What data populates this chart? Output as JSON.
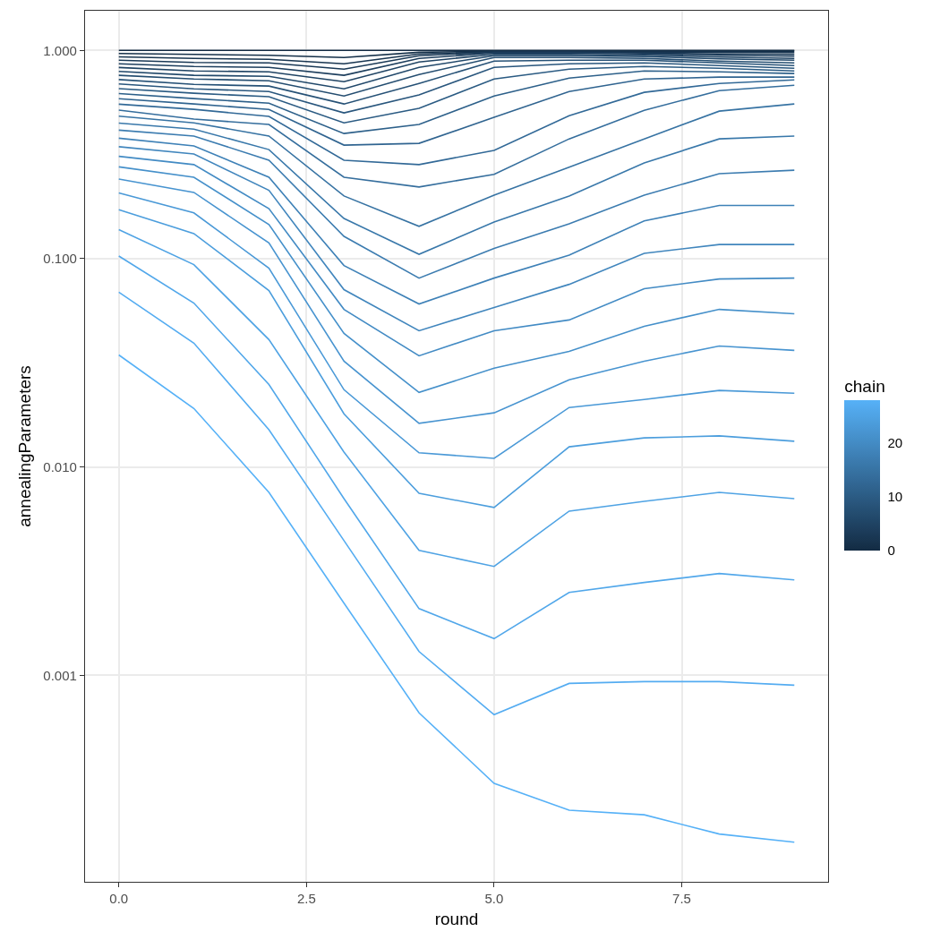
{
  "chart_data": {
    "type": "line",
    "xlabel": "round",
    "ylabel": "annealingParameters",
    "clabel": "chain",
    "clim": [
      0,
      28
    ],
    "cticks": [
      0,
      10,
      20
    ],
    "x": [
      0,
      1,
      2,
      3,
      4,
      5,
      6,
      7,
      8,
      9
    ],
    "xlim": [
      -0.45,
      9.45
    ],
    "xticks": [
      {
        "value": 0,
        "label": "0.0"
      },
      {
        "value": 2.5,
        "label": "2.5"
      },
      {
        "value": 5,
        "label": "5.0"
      },
      {
        "value": 7.5,
        "label": "7.5"
      }
    ],
    "log": "y",
    "ylim": [
      0.000102,
      1.55
    ],
    "yticks": [
      {
        "value": 0.001,
        "label": "0.001"
      },
      {
        "value": 0.01,
        "label": "0.010"
      },
      {
        "value": 0.1,
        "label": "0.100"
      },
      {
        "value": 1,
        "label": "1.000"
      }
    ],
    "grid": true,
    "line_style": "solid",
    "marker": "none",
    "series": [
      {
        "color": "#132b43",
        "values": [
          1.0,
          1.0,
          1.0,
          1.0,
          1.0,
          1.0,
          1.0,
          1.0,
          1.0,
          1.0
        ]
      },
      {
        "color": "#153049",
        "values": [
          0.966,
          0.957,
          0.947,
          0.924,
          0.98,
          0.99,
          0.99,
          0.99,
          0.99,
          0.99
        ]
      },
      {
        "color": "#183550",
        "values": [
          0.931,
          0.915,
          0.906,
          0.862,
          0.961,
          0.985,
          0.985,
          0.98,
          0.98,
          0.976
        ]
      },
      {
        "color": "#1a3956",
        "values": [
          0.897,
          0.875,
          0.871,
          0.813,
          0.943,
          0.98,
          0.98,
          0.971,
          0.961,
          0.957
        ]
      },
      {
        "color": "#1d3e5d",
        "values": [
          0.862,
          0.837,
          0.829,
          0.759,
          0.915,
          0.971,
          0.971,
          0.961,
          0.947,
          0.938
        ]
      },
      {
        "color": "#1f4363",
        "values": [
          0.828,
          0.797,
          0.789,
          0.708,
          0.88,
          0.957,
          0.957,
          0.947,
          0.929,
          0.915
        ]
      },
      {
        "color": "#21486a",
        "values": [
          0.793,
          0.759,
          0.751,
          0.654,
          0.829,
          0.943,
          0.943,
          0.933,
          0.911,
          0.897
        ]
      },
      {
        "color": "#244d70",
        "values": [
          0.759,
          0.729,
          0.715,
          0.604,
          0.766,
          0.924,
          0.924,
          0.915,
          0.888,
          0.871
        ]
      },
      {
        "color": "#265176",
        "values": [
          0.724,
          0.687,
          0.674,
          0.553,
          0.694,
          0.888,
          0.897,
          0.897,
          0.871,
          0.846
        ]
      },
      {
        "color": "#29567d",
        "values": [
          0.69,
          0.654,
          0.635,
          0.501,
          0.611,
          0.829,
          0.862,
          0.871,
          0.846,
          0.821
        ]
      },
      {
        "color": "#2b5b83",
        "values": [
          0.655,
          0.623,
          0.599,
          0.449,
          0.527,
          0.729,
          0.813,
          0.837,
          0.821,
          0.797
        ]
      },
      {
        "color": "#2d608a",
        "values": [
          0.621,
          0.587,
          0.558,
          0.399,
          0.441,
          0.604,
          0.736,
          0.797,
          0.789,
          0.774
        ]
      },
      {
        "color": "#306490",
        "values": [
          0.586,
          0.553,
          0.521,
          0.351,
          0.358,
          0.477,
          0.635,
          0.729,
          0.744,
          0.744
        ]
      },
      {
        "color": "#326997",
        "values": [
          0.552,
          0.521,
          0.482,
          0.297,
          0.283,
          0.331,
          0.486,
          0.629,
          0.694,
          0.722
        ]
      },
      {
        "color": "#356e9d",
        "values": [
          0.517,
          0.468,
          0.441,
          0.246,
          0.221,
          0.254,
          0.376,
          0.516,
          0.641,
          0.68
        ]
      },
      {
        "color": "#3773a3",
        "values": [
          0.483,
          0.449,
          0.388,
          0.2,
          0.143,
          0.202,
          0.275,
          0.376,
          0.511,
          0.553
        ]
      },
      {
        "color": "#3978aa",
        "values": [
          0.448,
          0.419,
          0.334,
          0.156,
          0.105,
          0.15,
          0.2,
          0.288,
          0.376,
          0.388
        ]
      },
      {
        "color": "#3c7cb0",
        "values": [
          0.414,
          0.388,
          0.297,
          0.128,
          0.0807,
          0.112,
          0.147,
          0.202,
          0.256,
          0.266
        ]
      },
      {
        "color": "#3e81b7",
        "values": [
          0.379,
          0.348,
          0.246,
          0.0927,
          0.0606,
          0.0807,
          0.104,
          0.152,
          0.18,
          0.18
        ]
      },
      {
        "color": "#4186bd",
        "values": [
          0.345,
          0.318,
          0.213,
          0.071,
          0.0451,
          0.0583,
          0.0753,
          0.106,
          0.117,
          0.117
        ]
      },
      {
        "color": "#438bc4",
        "values": [
          0.31,
          0.283,
          0.174,
          0.0571,
          0.0342,
          0.0451,
          0.0508,
          0.0717,
          0.0799,
          0.0807
        ]
      },
      {
        "color": "#4590ca",
        "values": [
          0.276,
          0.246,
          0.146,
          0.0438,
          0.0228,
          0.0298,
          0.0359,
          0.0474,
          0.0571,
          0.0544
        ]
      },
      {
        "color": "#4894d0",
        "values": [
          0.241,
          0.208,
          0.119,
          0.0322,
          0.0162,
          0.0182,
          0.0262,
          0.0322,
          0.0381,
          0.0363
        ]
      },
      {
        "color": "#4a99d7",
        "values": [
          0.207,
          0.166,
          0.09,
          0.0235,
          0.0117,
          0.011,
          0.0193,
          0.0211,
          0.0233,
          0.0226
        ]
      },
      {
        "color": "#4c9edd",
        "values": [
          0.172,
          0.132,
          0.0703,
          0.018,
          0.00748,
          0.00639,
          0.0125,
          0.0138,
          0.0141,
          0.0133
        ]
      },
      {
        "color": "#4fa3e4",
        "values": [
          0.138,
          0.0936,
          0.0409,
          0.0118,
          0.00398,
          0.00333,
          0.00614,
          0.00684,
          0.00755,
          0.00705
        ]
      },
      {
        "color": "#51a7ea",
        "values": [
          0.103,
          0.0612,
          0.0249,
          0.00705,
          0.00209,
          0.0015,
          0.0025,
          0.00279,
          0.00308,
          0.00287
        ]
      },
      {
        "color": "#54acf1",
        "values": [
          0.069,
          0.0393,
          0.0151,
          0.00443,
          0.0013,
          0.000647,
          0.000914,
          0.000933,
          0.000933,
          0.000896
        ]
      },
      {
        "color": "#56b1f7",
        "values": [
          0.0345,
          0.0191,
          0.00755,
          0.00222,
          0.00066,
          0.000303,
          0.000225,
          0.000214,
          0.000173,
          0.000158
        ]
      }
    ]
  }
}
